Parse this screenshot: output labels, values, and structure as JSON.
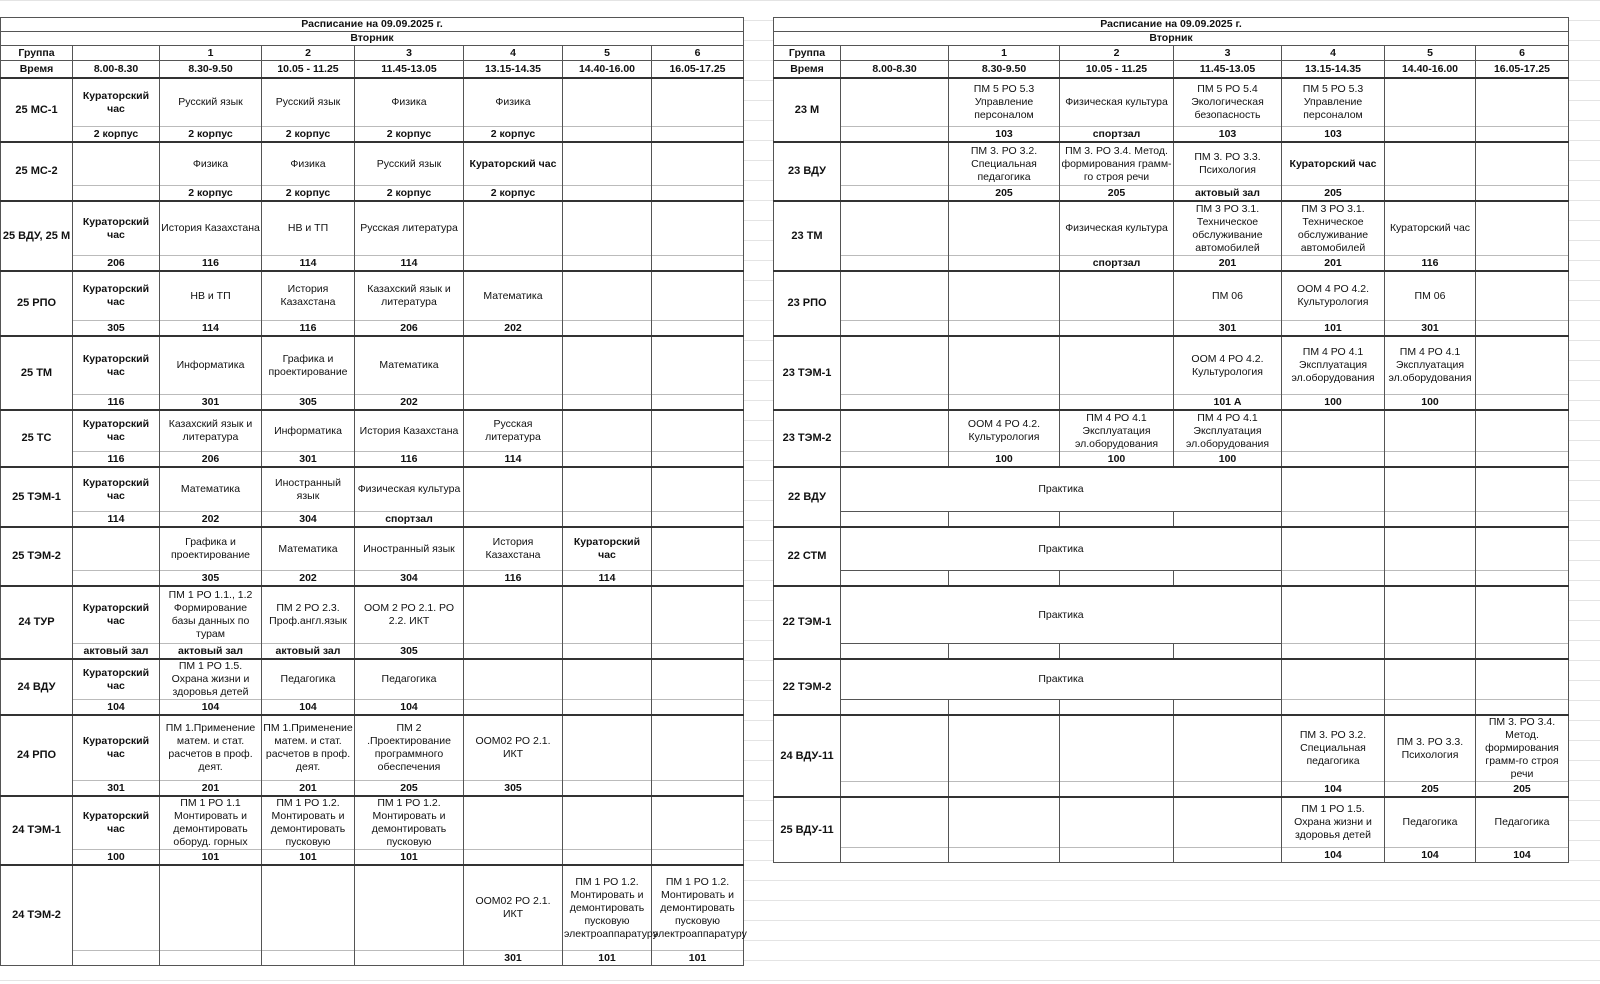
{
  "left": {
    "title": "Расписание на 09.09.2025 г.",
    "day": "Вторник",
    "group_header": "Группа",
    "time_header": "Время",
    "lesson_numbers": [
      "",
      "1",
      "2",
      "3",
      "4",
      "5",
      "6"
    ],
    "times": [
      "8.00-8.30",
      "8.30-9.50",
      "10.05 - 11.25",
      "11.45-13.05",
      "13.15-14.35",
      "14.40-16.00",
      "16.05-17.25"
    ],
    "groups": [
      {
        "name": "25 МС-1",
        "subjects": [
          "Кураторский час",
          "Русский язык",
          "Русский язык",
          "Физика",
          "Физика",
          "",
          ""
        ],
        "rooms": [
          "2 корпус",
          "2 корпус",
          "2 корпус",
          "2 корпус",
          "2 корпус",
          "",
          ""
        ]
      },
      {
        "name": "25 МС-2",
        "subjects": [
          "",
          "Физика",
          "Физика",
          "Русский язык",
          "Кураторский час",
          "",
          ""
        ],
        "rooms": [
          "",
          "2 корпус",
          "2 корпус",
          "2 корпус",
          "2 корпус",
          "",
          ""
        ]
      },
      {
        "name": "25 ВДУ, 25 М",
        "subjects": [
          "Кураторский час",
          "История Казахстана",
          "НВ и ТП",
          "Русская литература",
          "",
          "",
          ""
        ],
        "rooms": [
          "206",
          "116",
          "114",
          "114",
          "",
          "",
          ""
        ]
      },
      {
        "name": "25 РПО",
        "subjects": [
          "Кураторский час",
          "НВ и ТП",
          "История Казахстана",
          "Казахский язык и литература",
          "Математика",
          "",
          ""
        ],
        "rooms": [
          "305",
          "114",
          "116",
          "206",
          "202",
          "",
          ""
        ]
      },
      {
        "name": "25 ТМ",
        "subjects": [
          "Кураторский час",
          "Информатика",
          "Графика и проектирование",
          "Математика",
          "",
          "",
          ""
        ],
        "rooms": [
          "116",
          "301",
          "305",
          "202",
          "",
          "",
          ""
        ]
      },
      {
        "name": "25 ТС",
        "subjects": [
          "Кураторский час",
          "Казахский язык и литература",
          "Информатика",
          "История Казахстана",
          "Русская литература",
          "",
          ""
        ],
        "rooms": [
          "116",
          "206",
          "301",
          "116",
          "114",
          "",
          ""
        ]
      },
      {
        "name": "25 ТЭМ-1",
        "subjects": [
          "Кураторский час",
          "Математика",
          "Иностранный язык",
          "Физическая культура",
          "",
          "",
          ""
        ],
        "rooms": [
          "114",
          "202",
          "304",
          "спортзал",
          "",
          "",
          ""
        ]
      },
      {
        "name": "25 ТЭМ-2",
        "subjects": [
          "",
          "Графика и проектирование",
          "Математика",
          "Иностранный язык",
          "История Казахстана",
          "Кураторский час",
          ""
        ],
        "rooms": [
          "",
          "305",
          "202",
          "304",
          "116",
          "114",
          ""
        ]
      },
      {
        "name": "24 ТУР",
        "subjects": [
          "Кураторский час",
          "ПМ 1 РО 1.1., 1.2 Формирование базы данных по турам",
          "ПМ 2 РО 2.3. Проф.англ.язык",
          "ООМ 2 РО 2.1. РО 2.2. ИКТ",
          "",
          "",
          ""
        ],
        "rooms": [
          "актовый зал",
          "актовый зал",
          "актовый зал",
          "305",
          "",
          "",
          ""
        ]
      },
      {
        "name": "24 ВДУ",
        "subjects": [
          "Кураторский час",
          "ПМ 1 РО 1.5. Охрана жизни и здоровья детей",
          "Педагогика",
          "Педагогика",
          "",
          "",
          ""
        ],
        "rooms": [
          "104",
          "104",
          "104",
          "104",
          "",
          "",
          ""
        ]
      },
      {
        "name": "24 РПО",
        "subjects": [
          "Кураторский час",
          "ПМ 1.Применение матем. и стат. расчетов в проф. деят.",
          "ПМ 1.Применение матем. и стат. расчетов в проф. деят.",
          "ПМ 2 .Проектирование программного обеспечения",
          "ООМ02 РО 2.1. ИКТ",
          "",
          ""
        ],
        "rooms": [
          "301",
          "201",
          "201",
          "205",
          "305",
          "",
          ""
        ]
      },
      {
        "name": "24 ТЭМ-1",
        "subjects": [
          "Кураторский час",
          "ПМ 1 РО 1.1 Монтировать и демонтировать оборуд. горных",
          "ПМ 1 РО 1.2. Монтировать и демонтировать пусковую",
          "ПМ 1 РО 1.2. Монтировать и демонтировать пусковую",
          "",
          "",
          ""
        ],
        "rooms": [
          "100",
          "101",
          "101",
          "101",
          "",
          "",
          ""
        ]
      },
      {
        "name": "24 ТЭМ-2",
        "subjects": [
          "",
          "",
          "",
          "",
          "ООМ02 РО 2.1. ИКТ",
          "ПМ 1 РО 1.2. Монтировать и демонтировать пусковую электроаппаратуру",
          "ПМ 1 РО 1.2. Монтировать и демонтировать пусковую электроаппаратуру"
        ],
        "rooms": [
          "",
          "",
          "",
          "",
          "301",
          "101",
          "101"
        ]
      }
    ]
  },
  "right": {
    "title": "Расписание на 09.09.2025 г.",
    "day": "Вторник",
    "group_header": "Группа",
    "time_header": "Время",
    "lesson_numbers": [
      "",
      "1",
      "2",
      "3",
      "4",
      "5",
      "6"
    ],
    "times": [
      "8.00-8.30",
      "8.30-9.50",
      "10.05 - 11.25",
      "11.45-13.05",
      "13.15-14.35",
      "14.40-16.00",
      "16.05-17.25"
    ],
    "groups": [
      {
        "name": "23 М",
        "subjects": [
          "",
          "ПМ 5 РО 5.3 Управление персоналом",
          "Физическая культура",
          "ПМ 5 РО 5.4 Экологическая безопасность",
          "ПМ 5 РО 5.3 Управление персоналом",
          "",
          ""
        ],
        "rooms": [
          "",
          "103",
          "спортзал",
          "103",
          "103",
          "",
          ""
        ]
      },
      {
        "name": "23 ВДУ",
        "subjects": [
          "",
          "ПМ 3. РО 3.2. Специальная педагогика",
          "ПМ 3. РО 3.4. Метод. формирования грамм-го строя речи",
          "ПМ 3. РО 3.3. Психология",
          "Кураторский час",
          "",
          ""
        ],
        "rooms": [
          "",
          "205",
          "205",
          "актовый зал",
          "205",
          "",
          ""
        ]
      },
      {
        "name": "23 ТМ",
        "subjects": [
          "",
          "",
          "Физическая культура",
          "ПМ 3 РО 3.1. Техническое обслуживание автомобилей",
          "ПМ 3 РО 3.1. Техническое обслуживание автомобилей",
          "Кураторский час",
          ""
        ],
        "rooms": [
          "",
          "",
          "спортзал",
          "201",
          "201",
          "116",
          ""
        ]
      },
      {
        "name": "23 РПО",
        "subjects": [
          "",
          "",
          "",
          "ПМ 06",
          "ООМ 4 РО 4.2. Культурология",
          "ПМ 06",
          ""
        ],
        "rooms": [
          "",
          "",
          "",
          "301",
          "101",
          "301",
          ""
        ]
      },
      {
        "name": "23 ТЭМ-1",
        "subjects": [
          "",
          "",
          "",
          "ООМ 4 РО 4.2. Культурология",
          "ПМ 4 РО 4.1 Эксплуатация эл.оборудования",
          "ПМ 4 РО 4.1 Эксплуатация эл.оборудования",
          ""
        ],
        "rooms": [
          "",
          "",
          "",
          "101 А",
          "100",
          "100",
          ""
        ]
      },
      {
        "name": "23 ТЭМ-2",
        "subjects": [
          "",
          "ООМ 4 РО 4.2. Культурология",
          "ПМ 4 РО 4.1 Эксплуатация эл.оборудования",
          "ПМ 4 РО 4.1 Эксплуатация эл.оборудования",
          "",
          "",
          ""
        ],
        "rooms": [
          "",
          "100",
          "100",
          "100",
          "",
          "",
          ""
        ]
      },
      {
        "name": "22 ВДУ",
        "practice": "Практика"
      },
      {
        "name": "22 СТМ",
        "practice": "Практика"
      },
      {
        "name": "22 ТЭМ-1",
        "practice": "Практика"
      },
      {
        "name": "22 ТЭМ-2",
        "practice": "Практика"
      },
      {
        "name": "24 ВДУ-11",
        "subjects": [
          "",
          "",
          "",
          "",
          "ПМ 3. РО 3.2. Специальная педагогика",
          "ПМ 3. РО 3.3. Психология",
          "ПМ 3. РО 3.4. Метод. формирования грамм-го строя речи"
        ],
        "rooms": [
          "",
          "",
          "",
          "",
          "104",
          "205",
          "205"
        ]
      },
      {
        "name": "25 ВДУ-11",
        "subjects": [
          "",
          "",
          "",
          "",
          "ПМ 1 РО 1.5. Охрана жизни и здоровья детей",
          "Педагогика",
          "Педагогика"
        ],
        "rooms": [
          "",
          "",
          "",
          "",
          "104",
          "104",
          "104"
        ]
      }
    ]
  }
}
